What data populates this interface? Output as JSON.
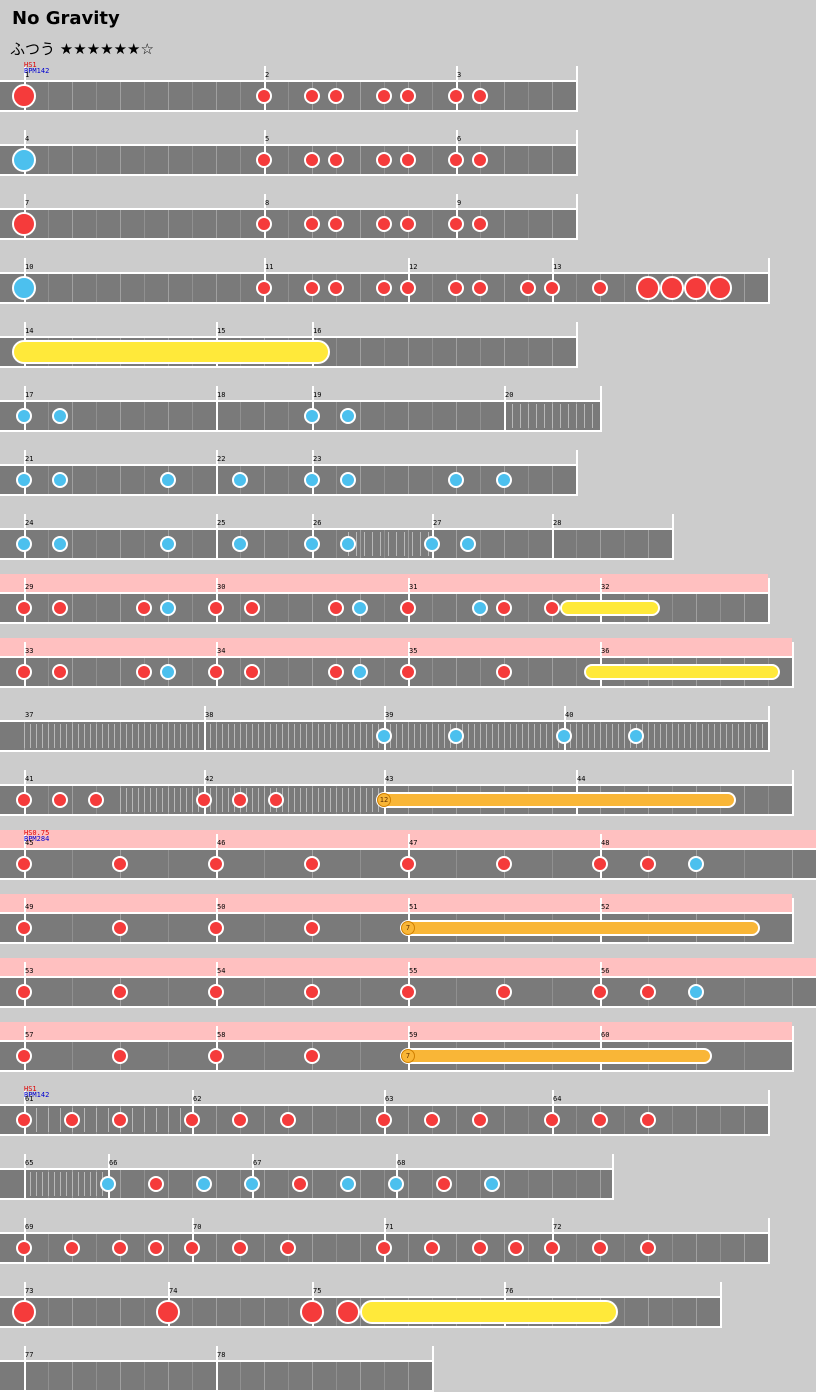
{
  "song_title": "No Gravity",
  "difficulty": "ふつう",
  "stars": "★★★★★★☆",
  "colors": {
    "don": "#f53b3b",
    "ka": "#4cc0ee",
    "roll": "#ffe93a",
    "balloon": "#f9b637",
    "gogo": "#ffc0c0",
    "lane": "#7a7a7a"
  },
  "rows": [
    {
      "len": 552,
      "bars": [
        0,
        240,
        432
      ],
      "nums": [
        "1",
        "2",
        "3"
      ],
      "ann": [
        [
          "HS1",
          "r"
        ],
        [
          "BPM142",
          "b"
        ]
      ],
      "sub": [
        48,
        24
      ],
      "notes": [
        [
          0,
          "d",
          1
        ],
        [
          240,
          "d"
        ],
        [
          288,
          "d"
        ],
        [
          312,
          "d"
        ],
        [
          360,
          "d"
        ],
        [
          384,
          "d"
        ],
        [
          432,
          "d"
        ],
        [
          456,
          "d"
        ]
      ]
    },
    {
      "len": 552,
      "bars": [
        0,
        240,
        432
      ],
      "nums": [
        "4",
        "5",
        "6"
      ],
      "sub": [
        48,
        24
      ],
      "notes": [
        [
          0,
          "k",
          1
        ],
        [
          240,
          "d"
        ],
        [
          288,
          "d"
        ],
        [
          312,
          "d"
        ],
        [
          360,
          "d"
        ],
        [
          384,
          "d"
        ],
        [
          432,
          "d"
        ],
        [
          456,
          "d"
        ]
      ]
    },
    {
      "len": 552,
      "bars": [
        0,
        240,
        432
      ],
      "nums": [
        "7",
        "8",
        "9"
      ],
      "sub": [
        48,
        24
      ],
      "notes": [
        [
          0,
          "d",
          1
        ],
        [
          240,
          "d"
        ],
        [
          288,
          "d"
        ],
        [
          312,
          "d"
        ],
        [
          360,
          "d"
        ],
        [
          384,
          "d"
        ],
        [
          432,
          "d"
        ],
        [
          456,
          "d"
        ]
      ]
    },
    {
      "len": 744,
      "bars": [
        0,
        240,
        384,
        528
      ],
      "nums": [
        "10",
        "11",
        "12",
        "13"
      ],
      "sub": [
        48,
        24
      ],
      "notes": [
        [
          0,
          "k",
          1
        ],
        [
          240,
          "d"
        ],
        [
          288,
          "d"
        ],
        [
          312,
          "d"
        ],
        [
          360,
          "d"
        ],
        [
          384,
          "d"
        ],
        [
          432,
          "d"
        ],
        [
          456,
          "d"
        ],
        [
          504,
          "d"
        ],
        [
          528,
          "d"
        ],
        [
          576,
          "d"
        ],
        [
          624,
          "d",
          1
        ],
        [
          648,
          "d",
          1
        ],
        [
          672,
          "d",
          1
        ],
        [
          696,
          "d",
          1
        ]
      ]
    },
    {
      "len": 552,
      "bars": [
        0,
        192,
        288
      ],
      "nums": [
        "14",
        "15",
        "16"
      ],
      "sub": [
        48,
        24
      ],
      "rolls": [
        [
          0,
          294,
          24
        ]
      ],
      "notes": []
    },
    {
      "len": 576,
      "bars": [
        0,
        192,
        288,
        480
      ],
      "nums": [
        "17",
        "18",
        "19",
        "20"
      ],
      "sub": [
        48,
        24
      ],
      "fine": [
        [
          480,
          576,
          8
        ]
      ],
      "notes": [
        [
          0,
          "k"
        ],
        [
          36,
          "k"
        ],
        [
          288,
          "k"
        ],
        [
          324,
          "k"
        ]
      ]
    },
    {
      "len": 552,
      "bars": [
        0,
        192,
        288
      ],
      "nums": [
        "21",
        "22",
        "23"
      ],
      "sub": [
        48,
        24
      ],
      "notes": [
        [
          0,
          "k"
        ],
        [
          36,
          "k"
        ],
        [
          144,
          "k"
        ],
        [
          216,
          "k"
        ],
        [
          288,
          "k"
        ],
        [
          324,
          "k"
        ],
        [
          432,
          "k"
        ],
        [
          480,
          "k"
        ]
      ]
    },
    {
      "len": 648,
      "bars": [
        0,
        192,
        288,
        408,
        528
      ],
      "nums": [
        "24",
        "25",
        "26",
        "27",
        "28"
      ],
      "sub": [
        48,
        24
      ],
      "fine": [
        [
          324,
          408,
          8
        ]
      ],
      "notes": [
        [
          0,
          "k"
        ],
        [
          36,
          "k"
        ],
        [
          144,
          "k"
        ],
        [
          216,
          "k"
        ],
        [
          288,
          "k"
        ],
        [
          324,
          "k"
        ],
        [
          408,
          "k"
        ],
        [
          444,
          "k"
        ]
      ]
    },
    {
      "len": 744,
      "gogo": 768,
      "bars": [
        0,
        192,
        384,
        576
      ],
      "nums": [
        "29",
        "30",
        "31",
        "32"
      ],
      "sub": [
        48,
        24
      ],
      "rolls": [
        [
          544,
          84,
          16
        ]
      ],
      "notes": [
        [
          0,
          "d"
        ],
        [
          36,
          "d"
        ],
        [
          120,
          "d"
        ],
        [
          144,
          "k"
        ],
        [
          192,
          "d"
        ],
        [
          228,
          "d"
        ],
        [
          312,
          "d"
        ],
        [
          336,
          "k"
        ],
        [
          384,
          "d"
        ],
        [
          456,
          "k"
        ],
        [
          480,
          "d"
        ],
        [
          528,
          "d"
        ]
      ]
    },
    {
      "len": 768,
      "gogo": 792,
      "bars": [
        0,
        192,
        384,
        576
      ],
      "nums": [
        "33",
        "34",
        "35",
        "36"
      ],
      "sub": [
        48,
        24
      ],
      "rolls": [
        [
          568,
          180,
          16
        ]
      ],
      "notes": [
        [
          0,
          "d"
        ],
        [
          36,
          "d"
        ],
        [
          120,
          "d"
        ],
        [
          144,
          "k"
        ],
        [
          192,
          "d"
        ],
        [
          228,
          "d"
        ],
        [
          312,
          "d"
        ],
        [
          336,
          "k"
        ],
        [
          384,
          "d"
        ],
        [
          480,
          "d"
        ]
      ]
    },
    {
      "len": 744,
      "x0": 0,
      "bars": [
        180,
        360,
        540
      ],
      "nums": [
        "37",
        "38",
        "39",
        "40"
      ],
      "numx": [
        24,
        204,
        384,
        564
      ],
      "sub": [
        48,
        24
      ],
      "fine": [
        [
          0,
          744,
          6
        ]
      ],
      "notes": [
        [
          360,
          "k"
        ],
        [
          432,
          "k"
        ],
        [
          540,
          "k"
        ],
        [
          612,
          "k"
        ]
      ]
    },
    {
      "len": 768,
      "bars": [
        0,
        180,
        360,
        552
      ],
      "nums": [
        "41",
        "42",
        "43",
        "44"
      ],
      "sub": [
        48,
        24
      ],
      "fine": [
        [
          96,
          360,
          6
        ]
      ],
      "balloons": [
        [
          360,
          344,
          "12"
        ]
      ],
      "notes": [
        [
          0,
          "d"
        ],
        [
          36,
          "d"
        ],
        [
          72,
          "d"
        ],
        [
          180,
          "d"
        ],
        [
          216,
          "d"
        ],
        [
          252,
          "d"
        ]
      ]
    },
    {
      "len": 792,
      "gogo": 816,
      "bars": [
        0,
        192,
        384,
        576
      ],
      "nums": [
        "45",
        "46",
        "47",
        "48"
      ],
      "ann": [
        [
          "HS0.75",
          "r"
        ],
        [
          "BPM284",
          "b"
        ]
      ],
      "sub": [
        96,
        48
      ],
      "notes": [
        [
          0,
          "d"
        ],
        [
          96,
          "d"
        ],
        [
          192,
          "d"
        ],
        [
          288,
          "d"
        ],
        [
          384,
          "d"
        ],
        [
          480,
          "d"
        ],
        [
          576,
          "d"
        ],
        [
          624,
          "d"
        ],
        [
          672,
          "k"
        ]
      ]
    },
    {
      "len": 768,
      "gogo": 792,
      "bars": [
        0,
        192,
        384,
        576
      ],
      "nums": [
        "49",
        "50",
        "51",
        "52"
      ],
      "sub": [
        96,
        48
      ],
      "balloons": [
        [
          384,
          344,
          "7"
        ]
      ],
      "notes": [
        [
          0,
          "d"
        ],
        [
          96,
          "d"
        ],
        [
          192,
          "d"
        ],
        [
          288,
          "d"
        ]
      ]
    },
    {
      "len": 792,
      "gogo": 816,
      "bars": [
        0,
        192,
        384,
        576
      ],
      "nums": [
        "53",
        "54",
        "55",
        "56"
      ],
      "sub": [
        96,
        48
      ],
      "notes": [
        [
          0,
          "d"
        ],
        [
          96,
          "d"
        ],
        [
          192,
          "d"
        ],
        [
          288,
          "d"
        ],
        [
          384,
          "d"
        ],
        [
          480,
          "d"
        ],
        [
          576,
          "d"
        ],
        [
          624,
          "d"
        ],
        [
          672,
          "k"
        ]
      ]
    },
    {
      "len": 768,
      "gogo": 792,
      "bars": [
        0,
        192,
        384,
        576
      ],
      "nums": [
        "57",
        "58",
        "59",
        "60"
      ],
      "sub": [
        96,
        48
      ],
      "balloons": [
        [
          384,
          296,
          "7"
        ]
      ],
      "notes": [
        [
          0,
          "d"
        ],
        [
          96,
          "d"
        ],
        [
          192,
          "d"
        ],
        [
          288,
          "d"
        ]
      ]
    },
    {
      "len": 744,
      "bars": [
        0,
        168,
        360,
        528
      ],
      "nums": [
        "61",
        "62",
        "63",
        "64"
      ],
      "ann": [
        [
          "HS1",
          "r"
        ],
        [
          "BPM142",
          "b"
        ]
      ],
      "sub": [
        48,
        24
      ],
      "fine": [
        [
          0,
          168,
          12
        ]
      ],
      "notes": [
        [
          0,
          "d"
        ],
        [
          48,
          "d"
        ],
        [
          96,
          "d"
        ],
        [
          168,
          "d"
        ],
        [
          216,
          "d"
        ],
        [
          264,
          "d"
        ],
        [
          360,
          "d"
        ],
        [
          408,
          "d"
        ],
        [
          456,
          "d"
        ],
        [
          528,
          "d"
        ],
        [
          576,
          "d"
        ],
        [
          624,
          "d"
        ]
      ]
    },
    {
      "len": 588,
      "bars": [
        0,
        84,
        228,
        372
      ],
      "nums": [
        "65",
        "66",
        "67",
        "68"
      ],
      "sub": [
        48,
        24
      ],
      "fine": [
        [
          0,
          84,
          6
        ]
      ],
      "notes": [
        [
          84,
          "k"
        ],
        [
          132,
          "d"
        ],
        [
          180,
          "k"
        ],
        [
          228,
          "k"
        ],
        [
          276,
          "d"
        ],
        [
          324,
          "k"
        ],
        [
          372,
          "k"
        ],
        [
          420,
          "d"
        ],
        [
          468,
          "k"
        ]
      ]
    },
    {
      "len": 744,
      "bars": [
        0,
        168,
        360,
        528
      ],
      "nums": [
        "69",
        "70",
        "71",
        "72"
      ],
      "sub": [
        48,
        24
      ],
      "notes": [
        [
          0,
          "d"
        ],
        [
          48,
          "d"
        ],
        [
          96,
          "d"
        ],
        [
          132,
          "d"
        ],
        [
          168,
          "d"
        ],
        [
          216,
          "d"
        ],
        [
          264,
          "d"
        ],
        [
          360,
          "d"
        ],
        [
          408,
          "d"
        ],
        [
          456,
          "d"
        ],
        [
          492,
          "d"
        ],
        [
          528,
          "d"
        ],
        [
          576,
          "d"
        ],
        [
          624,
          "d"
        ]
      ]
    },
    {
      "len": 696,
      "bars": [
        0,
        144,
        288,
        480
      ],
      "nums": [
        "73",
        "74",
        "75",
        "76"
      ],
      "sub": [
        48,
        24
      ],
      "rolls": [
        [
          348,
          234,
          24
        ]
      ],
      "notes": [
        [
          0,
          "d",
          1
        ],
        [
          144,
          "d",
          1
        ],
        [
          288,
          "d",
          1
        ],
        [
          324,
          "d",
          1
        ]
      ]
    },
    {
      "len": 408,
      "bars": [
        0,
        192
      ],
      "nums": [
        "77",
        "78"
      ],
      "sub": [
        48,
        24
      ],
      "notes": []
    }
  ]
}
